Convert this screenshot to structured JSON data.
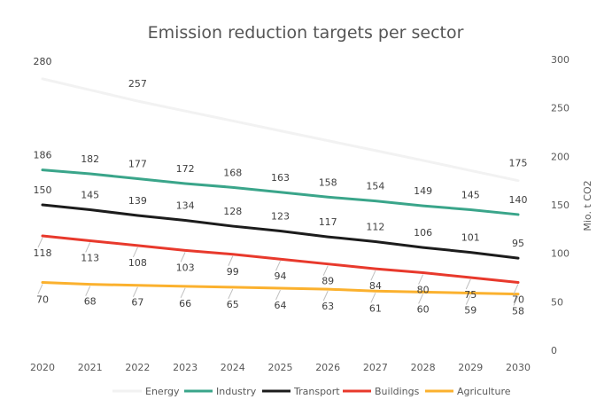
{
  "chart_data": {
    "type": "line",
    "title": "Emission reduction targets per sector",
    "ylabel": "Mio. t CO2",
    "x": [
      "2020",
      "2021",
      "2022",
      "2023",
      "2024",
      "2025",
      "2026",
      "2027",
      "2028",
      "2029",
      "2030"
    ],
    "ylim": [
      0,
      300
    ],
    "yticks": [
      "0",
      "50",
      "100",
      "150",
      "200",
      "250",
      "300"
    ],
    "y_axis_side": "right",
    "grid": false,
    "legend_position": "bottom",
    "series": [
      {
        "name": "Energy",
        "color": "#f2f2f2",
        "values": [
          280,
          268.5,
          257,
          246.8,
          236.6,
          226.4,
          216.2,
          206,
          195.8,
          185.4,
          175
        ],
        "labels": {
          "0": "280",
          "2": "257",
          "10": "175"
        }
      },
      {
        "name": "Industry",
        "color": "#3aa58a",
        "values": [
          186,
          182,
          177,
          172,
          168,
          163,
          158,
          154,
          149,
          145,
          140
        ],
        "labels": {
          "0": "186",
          "1": "182",
          "2": "177",
          "3": "172",
          "4": "168",
          "5": "163",
          "6": "158",
          "7": "154",
          "8": "149",
          "9": "145",
          "10": "140"
        }
      },
      {
        "name": "Transport",
        "color": "#1c1c1c",
        "values": [
          150,
          145,
          139,
          134,
          128,
          123,
          117,
          112,
          106,
          101,
          95
        ],
        "labels": {
          "0": "150",
          "1": "145",
          "2": "139",
          "3": "134",
          "4": "128",
          "5": "123",
          "6": "117",
          "7": "112",
          "8": "106",
          "9": "101",
          "10": "95"
        }
      },
      {
        "name": "Buildings",
        "color": "#e8392c",
        "values": [
          118,
          113,
          108,
          103,
          99,
          94,
          89,
          84,
          80,
          75,
          70
        ],
        "labels": {
          "0": "118",
          "1": "113",
          "2": "108",
          "3": "103",
          "4": "99",
          "5": "94",
          "6": "89",
          "7": "84",
          "8": "80",
          "9": "75",
          "10": "70"
        }
      },
      {
        "name": "Agriculture",
        "color": "#fbb12e",
        "values": [
          70,
          68,
          67,
          66,
          65,
          64,
          63,
          61,
          60,
          59,
          58
        ],
        "labels": {
          "0": "70",
          "1": "68",
          "2": "67",
          "3": "66",
          "4": "65",
          "5": "64",
          "6": "63",
          "7": "61",
          "8": "60",
          "9": "59",
          "10": "58"
        }
      }
    ]
  }
}
